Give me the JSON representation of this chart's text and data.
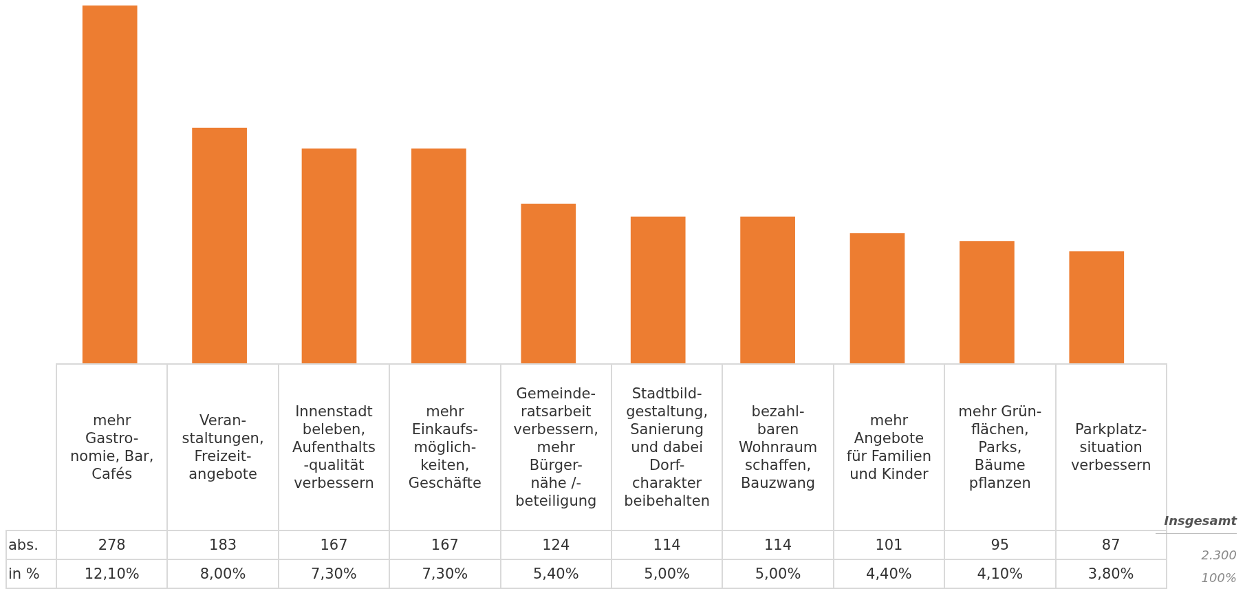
{
  "chart_data": {
    "type": "bar",
    "relative": false,
    "categories": [
      "mehr\nGastro-\nnomie, Bar,\nCafés",
      "Veran-\nstaltungen,\nFreizeit-\nangebote",
      "Innenstadt\nbeleben,\nAufenthalts\n-qualität\nverbessern",
      "mehr\nEinkaufs-\nmöglich-\nkeiten,\nGeschäfte",
      "Gemeinde-\nratsarbeit\nverbessern,\nmehr\nBürger-\nnähe /-\nbeteiligung",
      "Stadtbild-\ngestaltung,\nSanierung\nund dabei\nDorf-\ncharakter\nbeibehalten",
      "bezahl-\nbaren\nWohnraum\nschaffen,\nBauzwang",
      "mehr\nAngebote\nfür Familien\nund Kinder",
      "mehr Grün-\nflächen,\nParks,\nBäume\npflanzen",
      "Parkplatz-\nsituation\nverbessern"
    ],
    "series": [
      {
        "name": "abs.",
        "color": "#ed7d31",
        "values": [
          278,
          183,
          167,
          167,
          124,
          114,
          114,
          101,
          95,
          87
        ]
      }
    ],
    "data_labels": true,
    "annotations": [
      "in %",
      "12,10%",
      "8,00%",
      "7,30%",
      "7,30%",
      "5,40%",
      "5,00%",
      "5,00%",
      "4,40%",
      "4,10%",
      "3,80%",
      "Insgesamt",
      "2.300",
      "100%"
    ]
  }
}
